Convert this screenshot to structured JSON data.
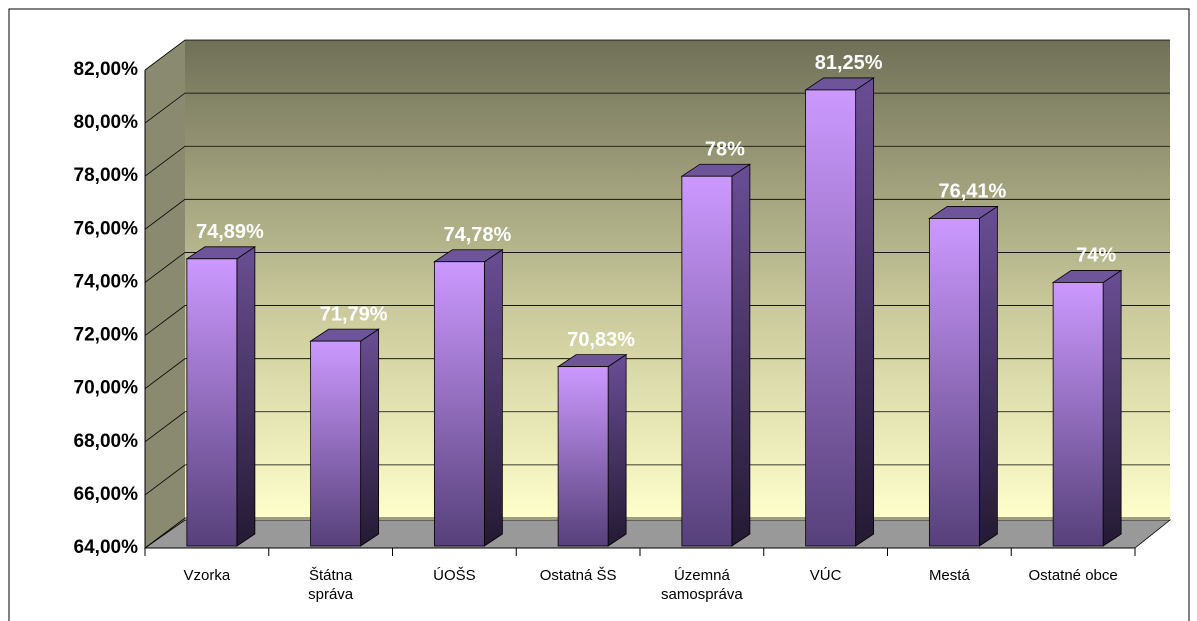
{
  "chart_data": {
    "type": "bar3d",
    "categories": [
      "Vzorka",
      "Štátna správa",
      "ÚOŠS",
      "Ostatná ŠS",
      "Územná samospráva",
      "VÚC",
      "Mestá",
      "Ostatné obce"
    ],
    "values": [
      74.89,
      71.79,
      74.78,
      70.83,
      78,
      81.25,
      76.41,
      74
    ],
    "value_labels": [
      "74,89%",
      "71,79%",
      "74,78%",
      "70,83%",
      "78%",
      "81,25%",
      "76,41%",
      "74%"
    ],
    "color": "#cc99ff",
    "ylim": [
      64,
      82
    ],
    "yticks": [
      {
        "value": 64,
        "label": "64,00%"
      },
      {
        "value": 66,
        "label": "66,00%"
      },
      {
        "value": 68,
        "label": "68,00%"
      },
      {
        "value": 70,
        "label": "70,00%"
      },
      {
        "value": 72,
        "label": "72,00%"
      },
      {
        "value": 74,
        "label": "74,00%"
      },
      {
        "value": 76,
        "label": "76,00%"
      },
      {
        "value": 78,
        "label": "78,00%"
      },
      {
        "value": 80,
        "label": "80,00%"
      },
      {
        "value": 82,
        "label": "82,00%"
      }
    ],
    "grid": true
  }
}
